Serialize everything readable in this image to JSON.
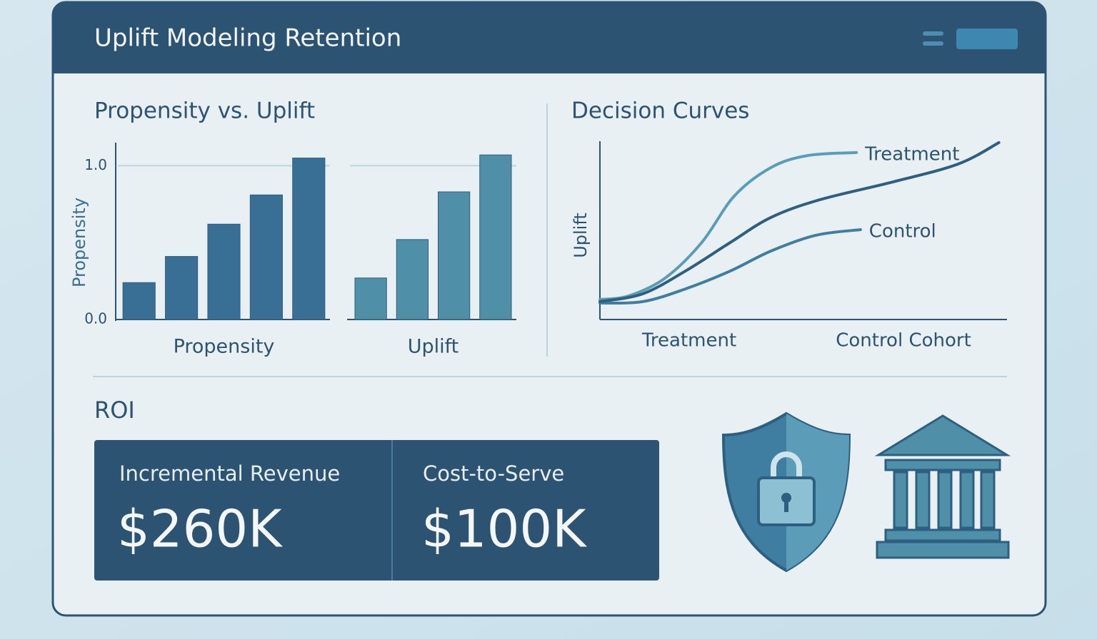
{
  "header": {
    "title": "Uplift Modeling Retention"
  },
  "chart_data": [
    {
      "type": "bar",
      "title": "Propensity vs. Uplift",
      "ylabel": "Propensity",
      "ylim": [
        0,
        1.15
      ],
      "yticks": [
        {
          "value": 0,
          "label": "0.0"
        },
        {
          "value": 1,
          "label": "1.0"
        }
      ],
      "grid": true,
      "series": [
        {
          "name": "Propensity",
          "color": "#3a6f95",
          "values": [
            0.24,
            0.41,
            0.62,
            0.81,
            1.05
          ]
        },
        {
          "name": "Uplift",
          "color": "#4f8fa8",
          "values": [
            0.27,
            0.52,
            0.83,
            1.07
          ]
        }
      ]
    },
    {
      "type": "line",
      "title": "Decision Curves",
      "ylabel": "Uplift",
      "x_labels": [
        "Treatment",
        "Control Cohort"
      ],
      "xlim": [
        0,
        100
      ],
      "ylim": [
        0,
        100
      ],
      "series": [
        {
          "name": "Treatment",
          "color": "#5b9db8",
          "x": [
            0,
            7,
            16,
            25,
            33,
            42,
            51,
            63
          ],
          "values": [
            11.3,
            13.3,
            23.4,
            43.5,
            69.8,
            85.9,
            92.7,
            94.4
          ]
        },
        {
          "name": "Control",
          "color": "#3f7ea0",
          "x": [
            0,
            10.5,
            21,
            32,
            42,
            53,
            64
          ],
          "values": [
            9.3,
            10.1,
            17.3,
            27.4,
            38.7,
            47.6,
            50.8
          ]
        },
        {
          "color": "#2e5f80",
          "x": [
            0,
            10.5,
            21,
            32,
            42,
            54,
            72,
            88,
            98
          ],
          "values": [
            10.1,
            14.5,
            27.4,
            43.5,
            57.7,
            67.7,
            77.8,
            87.9,
            100
          ]
        }
      ]
    }
  ],
  "roi": {
    "title": "ROI",
    "cards": [
      {
        "label": "Incremental Revenue",
        "value": "$260K"
      },
      {
        "label": "Cost-to-Serve",
        "value": "$100K"
      }
    ]
  }
}
